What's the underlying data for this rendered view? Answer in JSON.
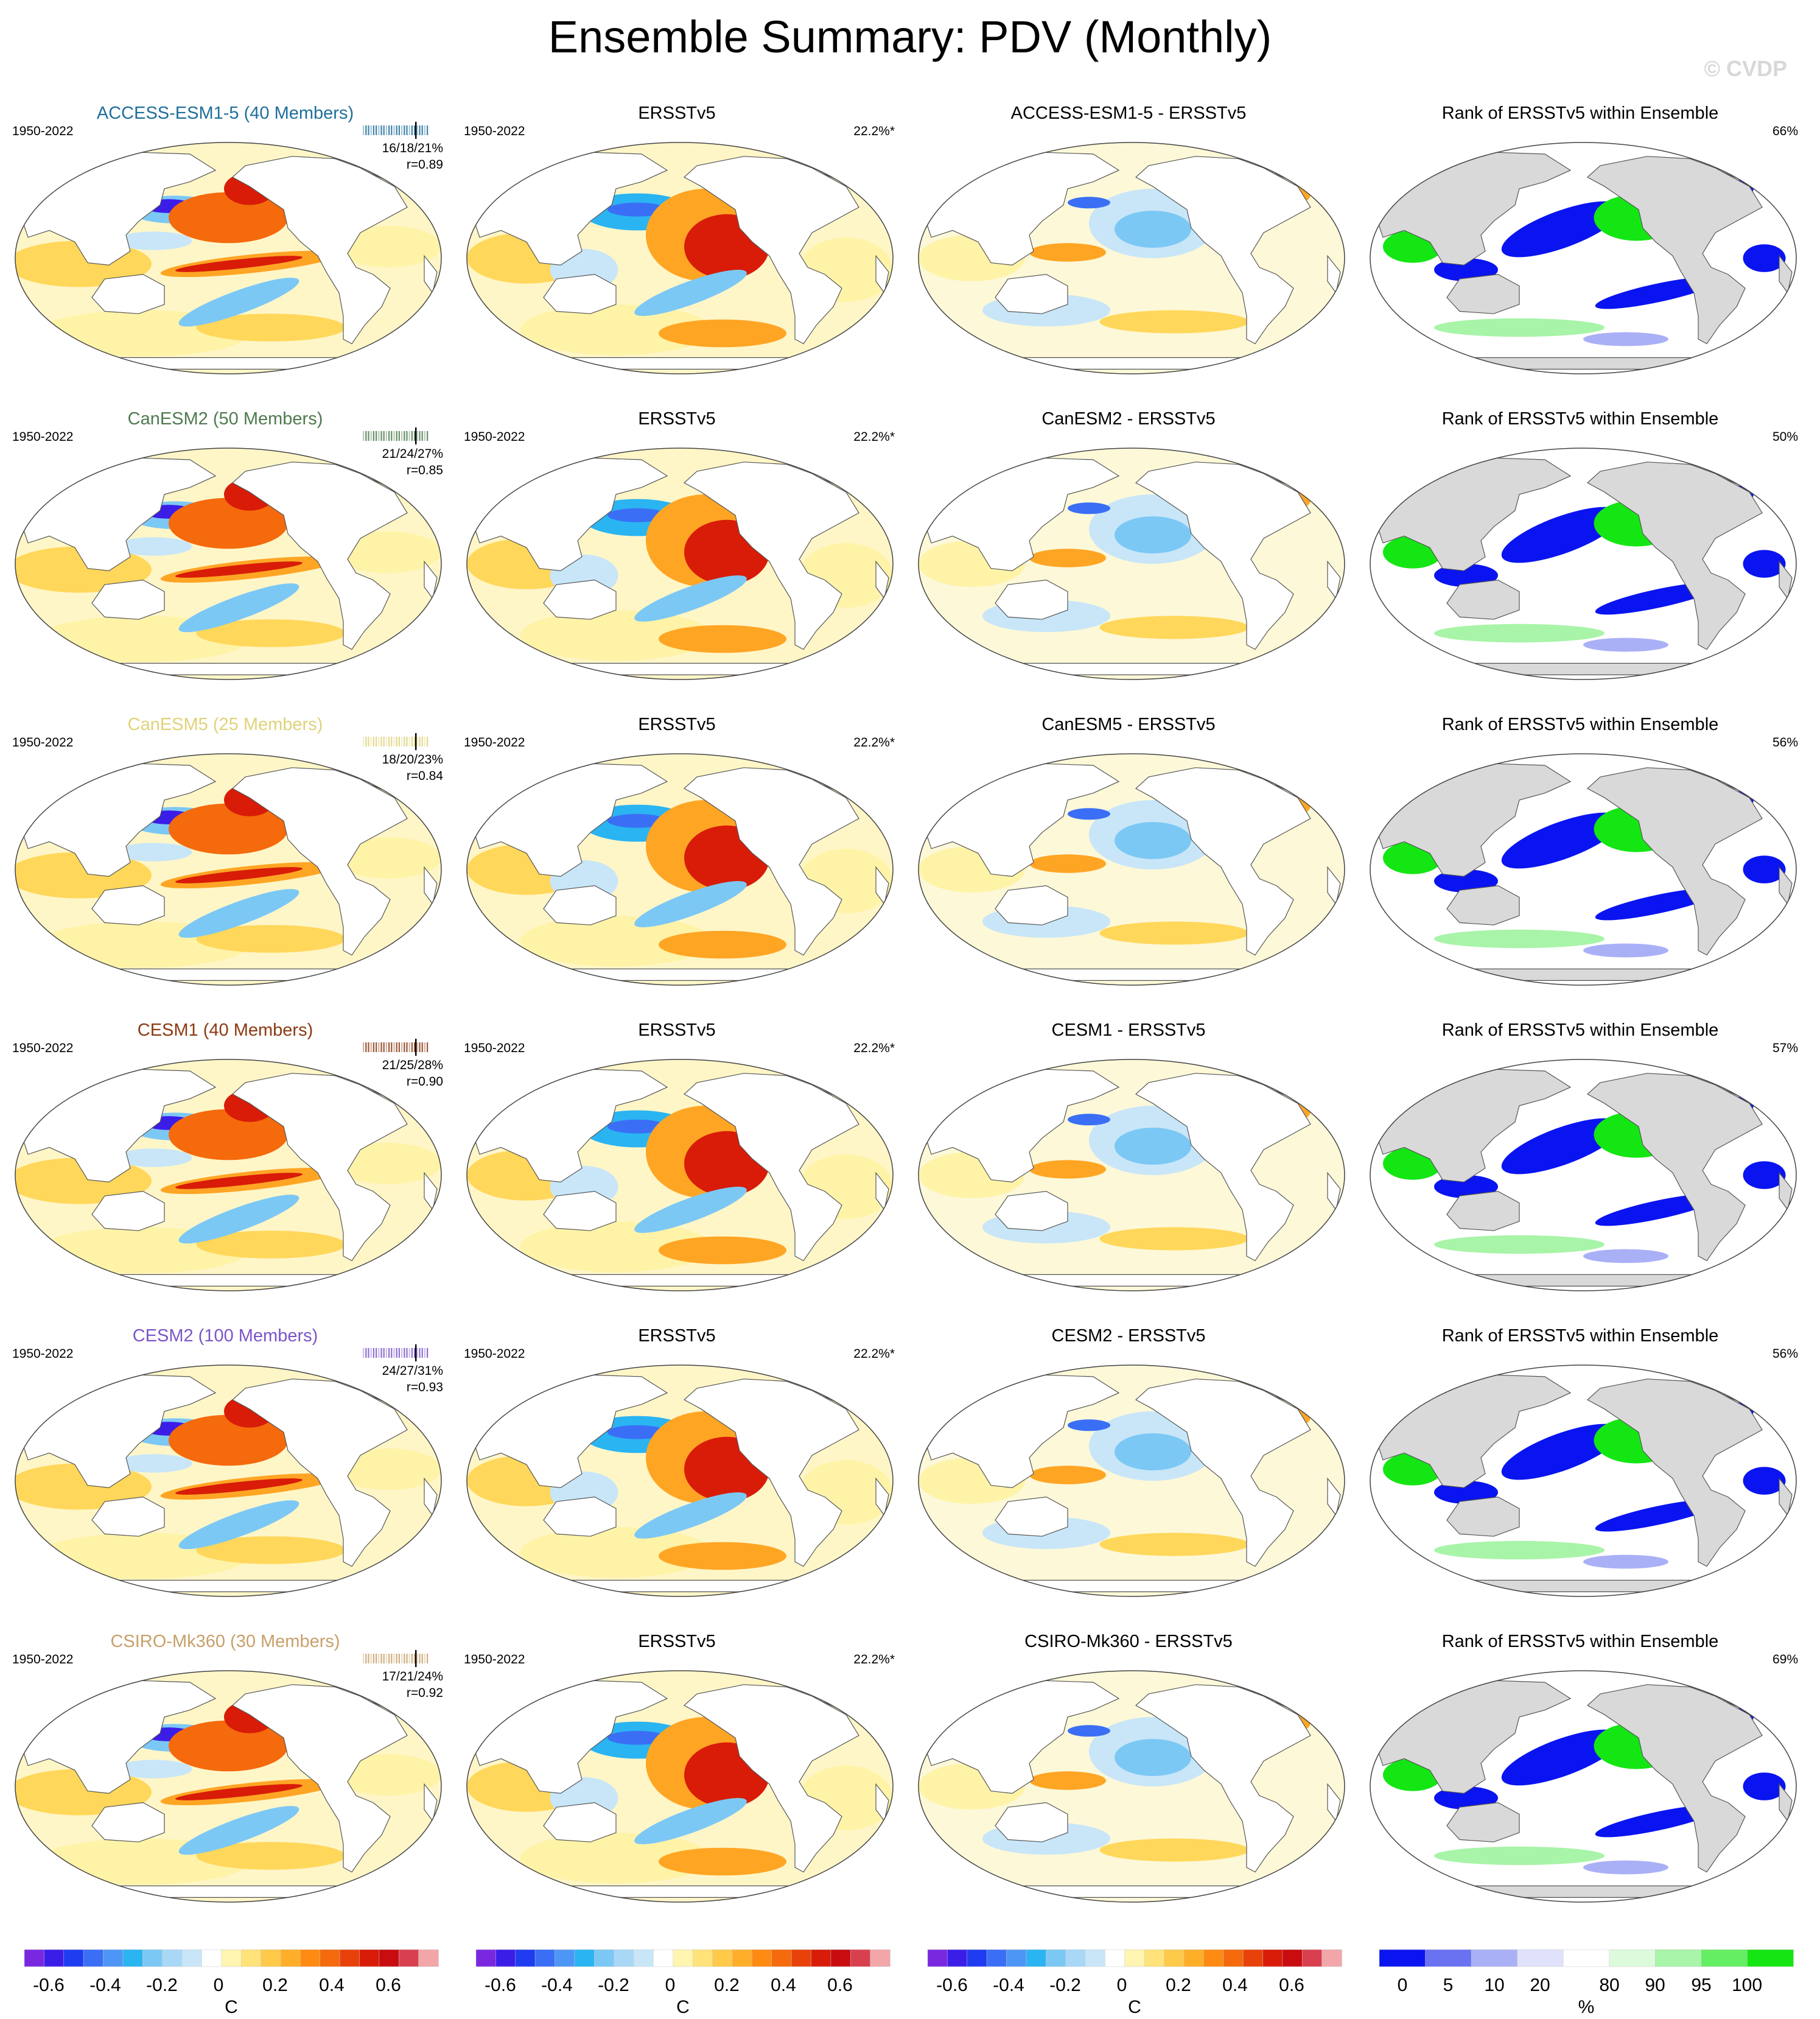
{
  "title": "Ensemble Summary: PDV (Monthly)",
  "watermark": "© CVDP",
  "period": "1950-2022",
  "obs_name": "ERSSTv5",
  "obs_pct": "22.2%*",
  "rank_title": "Rank of ERSSTv5 within Ensemble",
  "rows": [
    {
      "model_title": "ACCESS-ESM1-5 (40 Members)",
      "color": "#1f6f9b",
      "stats_pct": "16/18/21%",
      "stats_r": "r=0.89",
      "diff_title": "ACCESS-ESM1-5 - ERSSTv5",
      "rank_pct": "66%"
    },
    {
      "model_title": "CanESM2 (50 Members)",
      "color": "#4f7a4f",
      "stats_pct": "21/24/27%",
      "stats_r": "r=0.85",
      "diff_title": "CanESM2 - ERSSTv5",
      "rank_pct": "50%"
    },
    {
      "model_title": "CanESM5 (25 Members)",
      "color": "#e0d27a",
      "stats_pct": "18/20/23%",
      "stats_r": "r=0.84",
      "diff_title": "CanESM5 - ERSSTv5",
      "rank_pct": "56%"
    },
    {
      "model_title": "CESM1 (40 Members)",
      "color": "#8b3a12",
      "stats_pct": "21/25/28%",
      "stats_r": "r=0.90",
      "diff_title": "CESM1 - ERSSTv5",
      "rank_pct": "57%"
    },
    {
      "model_title": "CESM2 (100 Members)",
      "color": "#7b55c8",
      "stats_pct": "24/27/31%",
      "stats_r": "r=0.93",
      "diff_title": "CESM2 - ERSSTv5",
      "rank_pct": "56%"
    },
    {
      "model_title": "CSIRO-Mk360 (30 Members)",
      "color": "#c8a06a",
      "stats_pct": "17/21/24%",
      "stats_r": "r=0.92",
      "diff_title": "CSIRO-Mk360 - ERSSTv5",
      "rank_pct": "69%"
    }
  ],
  "colorbar_sst": {
    "ticks": [
      "-0.6",
      "-0.4",
      "-0.2",
      "0",
      "0.2",
      "0.4",
      "0.6"
    ],
    "unit": "C",
    "colors": [
      "#7a28e0",
      "#3b1de8",
      "#1f3cf0",
      "#3a6ff5",
      "#4e96f5",
      "#2ab4f2",
      "#7cc8f5",
      "#a8d8f6",
      "#c8e6f8",
      "#ffffff",
      "#fff5b0",
      "#ffe27a",
      "#ffc94a",
      "#ffae2a",
      "#ff8a12",
      "#f46a0c",
      "#e8420a",
      "#d81c08",
      "#c80c10",
      "#d84050",
      "#f2a6aa"
    ]
  },
  "colorbar_rank": {
    "ticks": [
      "0",
      "5",
      "10",
      "20",
      "80",
      "90",
      "95",
      "100"
    ],
    "unit": "%",
    "colors": [
      "#0a14f0",
      "#6a72f2",
      "#aab0f6",
      "#dfe2fa",
      "#ffffff",
      "#dcfadc",
      "#a8f4a8",
      "#64ee64",
      "#14e614"
    ]
  }
}
